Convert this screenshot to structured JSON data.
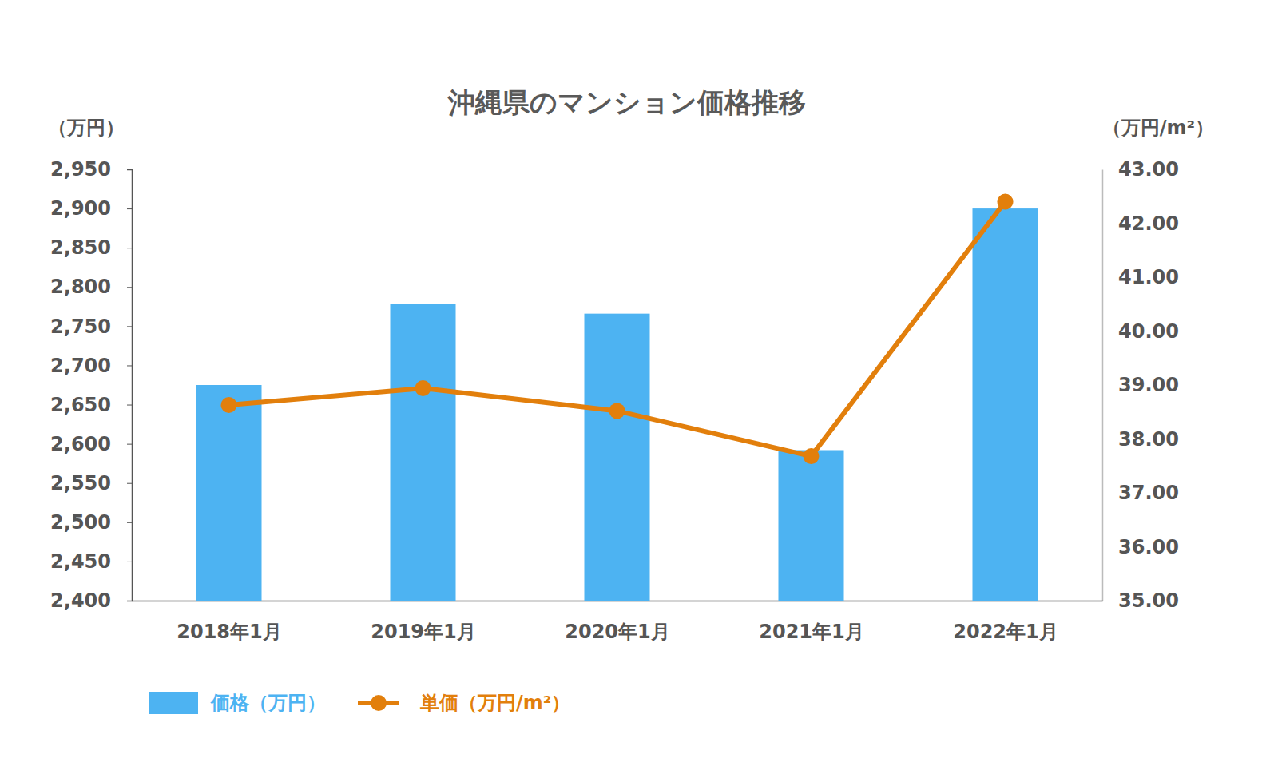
{
  "chart_data": {
    "type": "bar",
    "title": "沖縄県のマンション価格推移",
    "y_label": "（万円）",
    "y2_label": "（万円/m²）",
    "categories": [
      "2018年1月",
      "2019年1月",
      "2020年1月",
      "2021年1月",
      "2022年1月"
    ],
    "series": [
      {
        "name": "価格（万円）",
        "type": "bar",
        "color": "#4db3f2",
        "values": [
          2675,
          2778,
          2766,
          2592,
          2900
        ]
      },
      {
        "name": "単価（万円/m²）",
        "type": "line",
        "color": "#e27f0c",
        "marker": "circle",
        "axis": "y2",
        "values": [
          38.63,
          38.94,
          38.52,
          37.68,
          42.4
        ]
      }
    ],
    "ylim": [
      2400,
      2950
    ],
    "yticks": [
      {
        "value": 2400,
        "label": "2,400"
      },
      {
        "value": 2450,
        "label": "2,450"
      },
      {
        "value": 2500,
        "label": "2,500"
      },
      {
        "value": 2550,
        "label": "2,550"
      },
      {
        "value": 2600,
        "label": "2,600"
      },
      {
        "value": 2650,
        "label": "2,650"
      },
      {
        "value": 2700,
        "label": "2,700"
      },
      {
        "value": 2750,
        "label": "2,750"
      },
      {
        "value": 2800,
        "label": "2,800"
      },
      {
        "value": 2850,
        "label": "2,850"
      },
      {
        "value": 2900,
        "label": "2,900"
      },
      {
        "value": 2950,
        "label": "2,950"
      }
    ],
    "y2lim": [
      35,
      43
    ],
    "y2ticks": [
      {
        "value": 35,
        "label": "35.00"
      },
      {
        "value": 36,
        "label": "36.00"
      },
      {
        "value": 37,
        "label": "37.00"
      },
      {
        "value": 38,
        "label": "38.00"
      },
      {
        "value": 39,
        "label": "39.00"
      },
      {
        "value": 40,
        "label": "40.00"
      },
      {
        "value": 41,
        "label": "41.00"
      },
      {
        "value": 42,
        "label": "42.00"
      },
      {
        "value": 43,
        "label": "43.00"
      }
    ],
    "legend": "bottom"
  }
}
